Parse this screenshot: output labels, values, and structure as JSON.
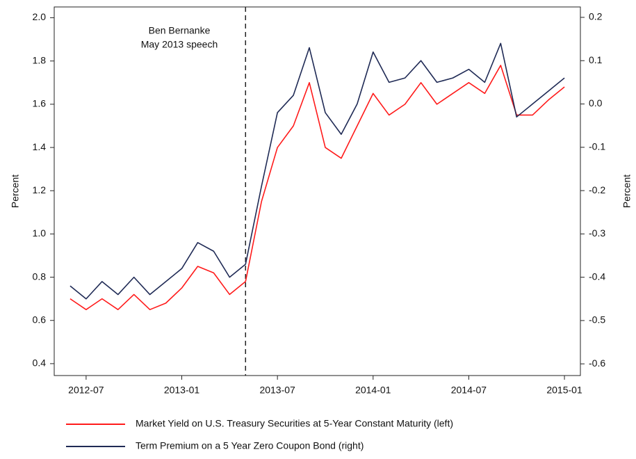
{
  "chart_data": {
    "type": "line",
    "annotation": [
      "Ben Bernanke",
      "May 2013 speech"
    ],
    "vline": "2013-05",
    "ylabel": "Percent",
    "y2label": "Percent",
    "x": [
      "2012-06",
      "2012-07",
      "2012-08",
      "2012-09",
      "2012-10",
      "2012-11",
      "2012-12",
      "2013-01",
      "2013-02",
      "2013-03",
      "2013-04",
      "2013-05",
      "2013-06",
      "2013-07",
      "2013-08",
      "2013-09",
      "2013-10",
      "2013-11",
      "2013-12",
      "2014-01",
      "2014-02",
      "2014-03",
      "2014-04",
      "2014-05",
      "2014-06",
      "2014-07",
      "2014-08",
      "2014-09",
      "2014-10",
      "2014-11",
      "2014-12",
      "2015-01"
    ],
    "xlim": [
      "2012-05",
      "2015-02"
    ],
    "xticks": [
      "2012-07",
      "2013-01",
      "2013-07",
      "2014-01",
      "2014-07",
      "2015-01"
    ],
    "ylim": [
      0.345,
      2.05
    ],
    "yticks": [
      0.4,
      0.6,
      0.8,
      {
        "value": 1.0,
        "label": "1.0"
      },
      1.2,
      1.4,
      1.6,
      1.8,
      {
        "value": 2.0,
        "label": "2.0"
      }
    ],
    "y2lim": [
      -0.627,
      0.224
    ],
    "y2ticks": [
      -0.6,
      -0.5,
      -0.4,
      -0.3,
      -0.2,
      -0.1,
      {
        "value": 0.0,
        "label": "0.0"
      },
      0.1,
      0.2
    ],
    "series": [
      {
        "name": "Market Yield on U.S. Treasury Securities at 5-Year Constant Maturity (left)",
        "color": "#ff1a1a",
        "values": [
          0.7,
          0.65,
          0.7,
          0.65,
          0.72,
          0.65,
          0.68,
          0.75,
          0.85,
          0.82,
          0.72,
          0.78,
          1.15,
          1.4,
          1.5,
          1.7,
          1.4,
          1.35,
          1.5,
          1.65,
          1.55,
          1.6,
          1.7,
          1.6,
          1.65,
          1.7,
          1.65,
          1.78,
          1.55,
          1.55,
          1.62,
          1.68
        ]
      },
      {
        "name": "Term Premium on a 5 Year Zero Coupon Bond (right)",
        "color": "#1f2a55",
        "axis": "y2",
        "values": [
          -0.42,
          -0.45,
          -0.41,
          -0.44,
          -0.4,
          -0.44,
          -0.41,
          -0.38,
          -0.32,
          -0.34,
          -0.4,
          -0.37,
          -0.19,
          -0.02,
          0.02,
          0.13,
          -0.02,
          -0.07,
          0.0,
          0.12,
          0.05,
          0.06,
          0.1,
          0.05,
          0.06,
          0.08,
          0.05,
          0.14,
          -0.03,
          0.0,
          0.03,
          0.06
        ]
      }
    ]
  }
}
